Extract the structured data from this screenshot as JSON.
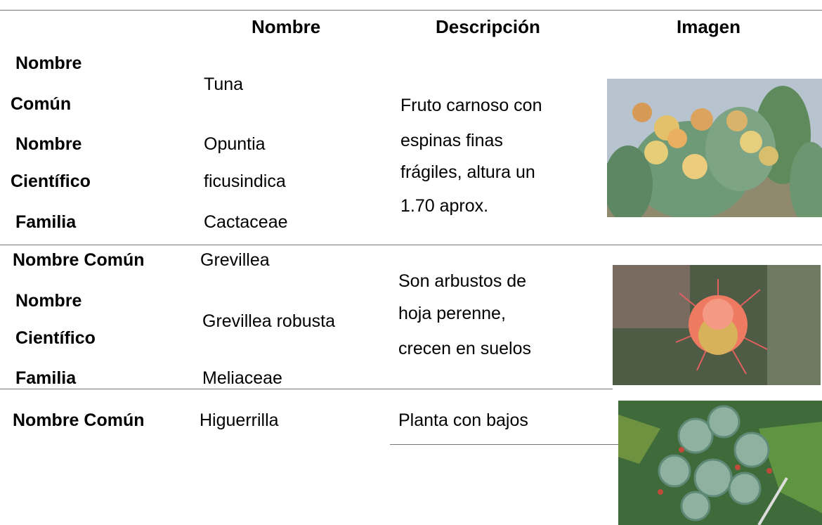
{
  "table": {
    "header": [
      "Nombre",
      "Descripción",
      "Imagen"
    ],
    "rows": [
      {
        "labels": [
          "Nombre",
          "Común",
          "Nombre",
          "Científico",
          "Familia"
        ],
        "name": [
          "Tuna",
          "Opuntia",
          "ficusindica",
          "Cactaceae"
        ],
        "description": [
          "Fruto carnoso con",
          "espinas finas",
          "frágiles, altura un",
          "1.70 aprox."
        ]
      },
      {
        "labels": [
          "Nombre Común",
          "Nombre",
          "Científico",
          "Familia"
        ],
        "name": [
          "Grevillea",
          "Grevillea robusta",
          "Meliaceae"
        ],
        "description": [
          "Son arbustos de",
          "hoja perenne,",
          "crecen en suelos"
        ]
      },
      {
        "labels": [
          "Nombre Común"
        ],
        "name": [
          "Higuerrilla"
        ],
        "description": [
          "Planta con bajos"
        ]
      }
    ]
  }
}
